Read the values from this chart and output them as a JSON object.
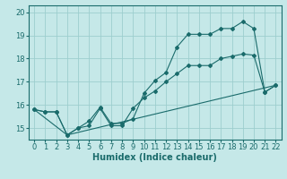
{
  "xlabel": "Humidex (Indice chaleur)",
  "background_color": "#c5e8e8",
  "grid_color": "#9dcece",
  "line_color": "#1a6b6b",
  "xlim": [
    -0.5,
    22.5
  ],
  "ylim": [
    14.5,
    20.3
  ],
  "yticks": [
    15,
    16,
    17,
    18,
    19,
    20
  ],
  "xticks": [
    0,
    1,
    2,
    3,
    4,
    5,
    6,
    7,
    8,
    9,
    10,
    11,
    12,
    13,
    14,
    15,
    16,
    17,
    18,
    19,
    20,
    21,
    22
  ],
  "series1_x": [
    0,
    1,
    2,
    3,
    4,
    5,
    6,
    7,
    8,
    9,
    10,
    11,
    12,
    13,
    14,
    15,
    16,
    17,
    18,
    19,
    20,
    21,
    22
  ],
  "series1_y": [
    15.8,
    15.7,
    15.7,
    14.7,
    15.0,
    15.3,
    15.9,
    15.2,
    15.2,
    15.4,
    16.5,
    17.05,
    17.4,
    18.5,
    19.05,
    19.05,
    19.05,
    19.3,
    19.3,
    19.6,
    19.3,
    16.55,
    16.85
  ],
  "series2_x": [
    0,
    1,
    2,
    3,
    4,
    5,
    6,
    7,
    8,
    9,
    10,
    11,
    12,
    13,
    14,
    15,
    16,
    17,
    18,
    19,
    20,
    21,
    22
  ],
  "series2_y": [
    15.8,
    15.7,
    15.7,
    14.7,
    15.0,
    15.1,
    15.85,
    15.1,
    15.1,
    15.85,
    16.3,
    16.6,
    17.0,
    17.35,
    17.7,
    17.7,
    17.7,
    18.0,
    18.1,
    18.2,
    18.15,
    16.55,
    16.85
  ],
  "series3_x": [
    0,
    3,
    22
  ],
  "series3_y": [
    15.8,
    14.7,
    16.85
  ],
  "fontsize_xlabel": 7,
  "fontsize_ticks": 6,
  "marker": "D",
  "markersize": 2.0,
  "linewidth": 0.8
}
